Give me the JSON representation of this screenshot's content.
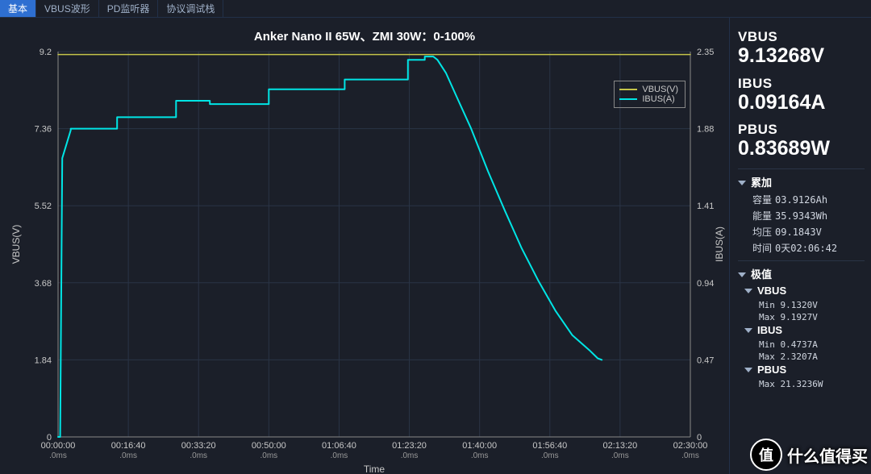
{
  "tabs": {
    "items": [
      "基本",
      "VBUS波形",
      "PD监听器",
      "协议调试栈"
    ],
    "active_index": 0
  },
  "chart": {
    "title": "Anker Nano II 65W、ZMI 30W：0-100%",
    "type": "line",
    "background_color": "#1b1f29",
    "grid_color": "#2a3446",
    "axis_color": "#888888",
    "text_color": "#c8c8c8",
    "title_fontsize": 15,
    "label_fontsize": 12,
    "tick_fontsize": 11,
    "x": {
      "label": "Time",
      "domain_min": 0,
      "domain_max": 150,
      "ticks": [
        0,
        16.67,
        33.33,
        50,
        66.67,
        83.33,
        100,
        116.67,
        133.33,
        150
      ],
      "tick_labels": [
        "00:00:00",
        "00:16:40",
        "00:33:20",
        "00:50:00",
        "01:06:40",
        "01:23:20",
        "01:40:00",
        "01:56:40",
        "02:13:20",
        "02:30:00"
      ],
      "sub_label": ".0ms"
    },
    "y_left": {
      "label": "VBUS(V)",
      "domain_min": 0,
      "domain_max": 9.2,
      "ticks": [
        0,
        1.84,
        3.68,
        5.52,
        7.36,
        9.2
      ],
      "tick_labels": [
        "0",
        "1.84",
        "3.68",
        "5.52",
        "7.36",
        "9.2"
      ]
    },
    "y_right": {
      "label": "IBUS(A)",
      "domain_min": 0,
      "domain_max": 2.35,
      "ticks": [
        0,
        0.47,
        0.94,
        1.41,
        1.88,
        2.35
      ],
      "tick_labels": [
        "0",
        "0.47",
        "0.94",
        "1.41",
        "1.88",
        "2.35"
      ]
    },
    "series": [
      {
        "name": "VBUS(V)",
        "axis": "left",
        "color": "#c4c44a",
        "width": 1.5,
        "points": [
          [
            0,
            9.13
          ],
          [
            150,
            9.13
          ]
        ]
      },
      {
        "name": "IBUS(A)",
        "axis": "right",
        "color": "#00e5e5",
        "width": 2,
        "points": [
          [
            0,
            0.0
          ],
          [
            0.5,
            0.0
          ],
          [
            1,
            1.7
          ],
          [
            3,
            1.87
          ],
          [
            3,
            1.88
          ],
          [
            14,
            1.88
          ],
          [
            14,
            1.95
          ],
          [
            28,
            1.95
          ],
          [
            28,
            2.05
          ],
          [
            36,
            2.05
          ],
          [
            36,
            2.03
          ],
          [
            50,
            2.03
          ],
          [
            50,
            2.12
          ],
          [
            68,
            2.12
          ],
          [
            68,
            2.18
          ],
          [
            83,
            2.18
          ],
          [
            83,
            2.3
          ],
          [
            87,
            2.3
          ],
          [
            87,
            2.32
          ],
          [
            89,
            2.32
          ],
          [
            90,
            2.3
          ],
          [
            92,
            2.22
          ],
          [
            95,
            2.05
          ],
          [
            98,
            1.88
          ],
          [
            102,
            1.62
          ],
          [
            106,
            1.38
          ],
          [
            110,
            1.15
          ],
          [
            114,
            0.95
          ],
          [
            118,
            0.77
          ],
          [
            122,
            0.62
          ],
          [
            126,
            0.53
          ],
          [
            128,
            0.48
          ],
          [
            129,
            0.47
          ]
        ]
      }
    ],
    "legend": {
      "items": [
        {
          "label": "VBUS(V)",
          "color": "#c4c44a"
        },
        {
          "label": "IBUS(A)",
          "color": "#00e5e5"
        }
      ]
    }
  },
  "readouts": {
    "vbus": {
      "label": "VBUS",
      "value": "9.13268V"
    },
    "ibus": {
      "label": "IBUS",
      "value": "0.09164A"
    },
    "pbus": {
      "label": "PBUS",
      "value": "0.83689W"
    }
  },
  "accum": {
    "heading": "累加",
    "capacity": {
      "k": "容量",
      "v": "03.9126Ah"
    },
    "energy": {
      "k": "能量",
      "v": "35.9343Wh"
    },
    "avgv": {
      "k": "均压",
      "v": "09.1843V"
    },
    "time": {
      "k": "时间",
      "v": "0天02:06:42"
    }
  },
  "extremes": {
    "heading": "极值",
    "vbus": {
      "heading": "VBUS",
      "min": "Min 9.1320V",
      "max": "Max 9.1927V"
    },
    "ibus": {
      "heading": "IBUS",
      "min": "Min 0.4737A",
      "max": "Max 2.3207A"
    },
    "pbus": {
      "heading": "PBUS",
      "max": "Max 21.3236W"
    }
  },
  "watermark": {
    "icon": "值",
    "text": "什么值得买"
  }
}
